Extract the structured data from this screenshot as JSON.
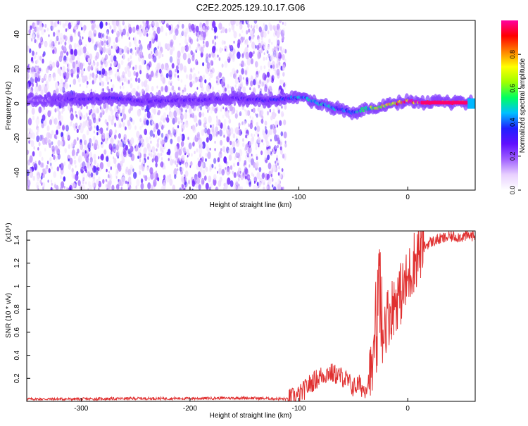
{
  "title": "C2E2.2025.129.10.17.G06",
  "chart_data": [
    {
      "type": "heatmap",
      "xlabel": "Height of straight line (km)",
      "ylabel": "Frequency (Hz)",
      "xlim": [
        -350,
        62
      ],
      "ylim": [
        -50,
        48
      ],
      "x_ticks": [
        -300,
        -200,
        -100,
        0
      ],
      "y_ticks": [
        -40,
        -20,
        0,
        20,
        40
      ],
      "x_tick_labels": [
        "-300",
        "-200",
        "-100",
        "0"
      ],
      "y_tick_labels": [
        "-40",
        "-20",
        "0",
        "20",
        "40"
      ],
      "colorbar": {
        "label": "Normalized spectral amplitude",
        "range": [
          0,
          1
        ],
        "ticks": [
          0.0,
          0.2,
          0.4,
          0.6,
          0.8
        ],
        "tick_labels": [
          "0.0",
          "0.2",
          "0.4",
          "0.6",
          "0.8"
        ],
        "colors": [
          "#ffffff",
          "#e8d0ff",
          "#a060ff",
          "#6010ff",
          "#2020ff",
          "#00c0ff",
          "#00ff60",
          "#a0ff00",
          "#ffff00",
          "#ff8000",
          "#ff0000",
          "#ff00a0"
        ]
      },
      "noise_region_x": [
        -350,
        -112
      ],
      "ridge": [
        {
          "x": -350,
          "y": 2,
          "amp": 0.15
        },
        {
          "x": -310,
          "y": 2.5,
          "amp": 0.25
        },
        {
          "x": -270,
          "y": 3,
          "amp": 0.3
        },
        {
          "x": -240,
          "y": 1.5,
          "amp": 0.25
        },
        {
          "x": -200,
          "y": 2,
          "amp": 0.25
        },
        {
          "x": -160,
          "y": 3,
          "amp": 0.25
        },
        {
          "x": -130,
          "y": 2,
          "amp": 0.3
        },
        {
          "x": -110,
          "y": 3,
          "amp": 0.35
        },
        {
          "x": -95,
          "y": 3.5,
          "amp": 0.45
        },
        {
          "x": -80,
          "y": 0,
          "amp": 0.45
        },
        {
          "x": -65,
          "y": -3,
          "amp": 0.4
        },
        {
          "x": -50,
          "y": -5,
          "amp": 0.4
        },
        {
          "x": -38,
          "y": -3,
          "amp": 0.5
        },
        {
          "x": -25,
          "y": -2,
          "amp": 0.65
        },
        {
          "x": -12,
          "y": 0,
          "amp": 0.75
        },
        {
          "x": 0,
          "y": 1.5,
          "amp": 0.9
        },
        {
          "x": 12,
          "y": 0.5,
          "amp": 1.0
        },
        {
          "x": 30,
          "y": 0.5,
          "amp": 1.0
        },
        {
          "x": 55,
          "y": 0.5,
          "amp": 1.0
        }
      ]
    },
    {
      "type": "line",
      "xlabel": "Height of straight line (km)",
      "ylabel": "SNR (10 * v/v)",
      "y_multiplier_label": "(x10⁴)",
      "xlim": [
        -350,
        62
      ],
      "ylim": [
        0,
        1.48
      ],
      "x_ticks": [
        -300,
        -200,
        -100,
        0
      ],
      "y_ticks": [
        0.2,
        0.4,
        0.6,
        0.8,
        1.0,
        1.2,
        1.4
      ],
      "x_tick_labels": [
        "-300",
        "-200",
        "-100",
        "0"
      ],
      "y_tick_labels": [
        "0.2",
        "0.4",
        "0.6",
        "0.8",
        "1",
        "1.2",
        "1.4"
      ],
      "line_color": "#e03030",
      "series": [
        {
          "x": [
            -350,
            -300,
            -250,
            -200,
            -150,
            -110,
            -100,
            -90,
            -80,
            -72,
            -65,
            -58,
            -50,
            -45,
            -40,
            -35,
            -30,
            -26,
            -24,
            -22,
            -20,
            -15,
            -10,
            -5,
            0,
            5,
            10,
            20,
            30,
            40,
            50,
            60
          ],
          "y": [
            0.02,
            0.02,
            0.025,
            0.025,
            0.03,
            0.02,
            0.05,
            0.15,
            0.22,
            0.25,
            0.23,
            0.2,
            0.12,
            0.15,
            0.1,
            0.2,
            0.35,
            0.7,
            0.5,
            0.65,
            0.7,
            0.8,
            0.9,
            0.95,
            1.05,
            1.2,
            1.3,
            1.38,
            1.41,
            1.43,
            1.43,
            1.44
          ]
        }
      ]
    }
  ]
}
